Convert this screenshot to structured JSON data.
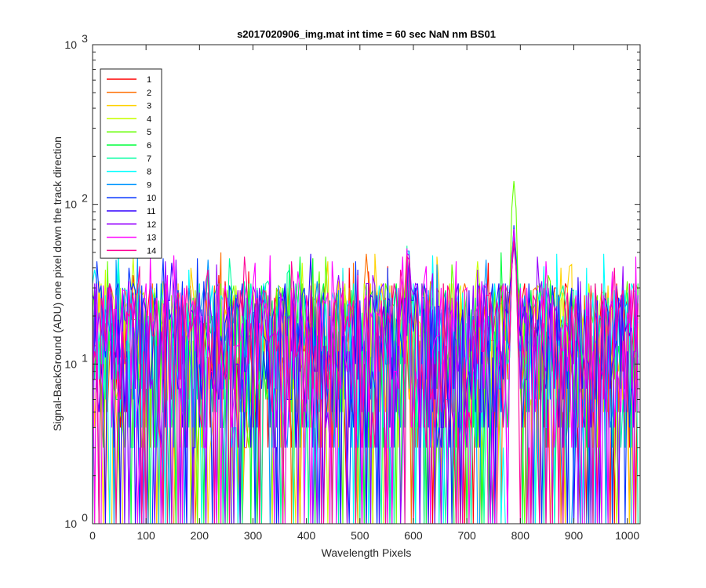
{
  "chart_data": {
    "type": "line",
    "title": "s2017020906_img.mat int time = 60 sec  NaN nm BS01",
    "xlabel": "Wavelength Pixels",
    "ylabel": "Signal-BackGround (ADU) one pixel down the track direction",
    "xlim": [
      0,
      1024
    ],
    "ylim": [
      1,
      1000
    ],
    "yscale": "log",
    "x_ticks": [
      0,
      100,
      200,
      300,
      400,
      500,
      600,
      700,
      800,
      900,
      1000
    ],
    "y_ticks": [
      {
        "base": "10",
        "exp": "0",
        "value": 1
      },
      {
        "base": "10",
        "exp": "1",
        "value": 10
      },
      {
        "base": "10",
        "exp": "2",
        "value": 100
      },
      {
        "base": "10",
        "exp": "3",
        "value": 1000
      }
    ],
    "grid": false,
    "legend_position": "top-left",
    "x_sampling": {
      "start": 0,
      "end": 1023,
      "step": 4
    },
    "series": [
      {
        "name": "1",
        "color": "#ff0000",
        "values": []
      },
      {
        "name": "2",
        "color": "#ff6e00",
        "values": []
      },
      {
        "name": "3",
        "color": "#ffd200",
        "values": []
      },
      {
        "name": "4",
        "color": "#c8ff00",
        "values": []
      },
      {
        "name": "5",
        "color": "#64ff00",
        "values": []
      },
      {
        "name": "6",
        "color": "#00ff3c",
        "values": []
      },
      {
        "name": "7",
        "color": "#00ffa0",
        "values": []
      },
      {
        "name": "8",
        "color": "#00ffff",
        "values": []
      },
      {
        "name": "9",
        "color": "#0096ff",
        "values": []
      },
      {
        "name": "10",
        "color": "#0032ff",
        "values": []
      },
      {
        "name": "11",
        "color": "#3200ff",
        "values": []
      },
      {
        "name": "12",
        "color": "#9600ff",
        "values": []
      },
      {
        "name": "13",
        "color": "#ff00ff",
        "values": []
      },
      {
        "name": "14",
        "color": "#ff0096",
        "values": []
      }
    ]
  }
}
